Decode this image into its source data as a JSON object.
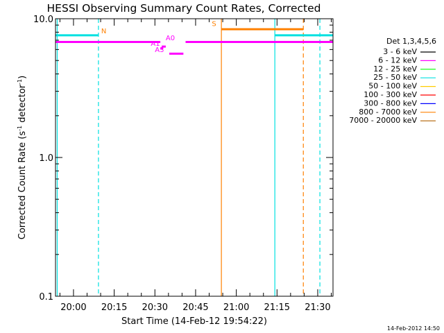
{
  "chart_data": {
    "type": "line",
    "title": "HESSI Observing Summary Count Rates, Corrected",
    "xlabel": "Start Time (14-Feb-12 19:54:22)",
    "ylabel_main": "Corrected Count Rate (s",
    "ylabel_sup1": "-1",
    "ylabel_mid": " detector",
    "ylabel_sup2": "-1",
    "ylabel_end": ")",
    "y_scale": "log",
    "ylim": [
      0.1,
      10.0
    ],
    "y_ticks": [
      {
        "value": 0.1,
        "label": "0.1"
      },
      {
        "value": 1.0,
        "label": "1.0"
      },
      {
        "value": 10.0,
        "label": "10.0"
      }
    ],
    "xlim_minutes": [
      -6.6333,
      95.6333
    ],
    "x_ticks": [
      {
        "label": "20:00",
        "minutes": 0
      },
      {
        "label": "20:15",
        "minutes": 15
      },
      {
        "label": "20:30",
        "minutes": 30
      },
      {
        "label": "20:45",
        "minutes": 45
      },
      {
        "label": "21:00",
        "minutes": 60
      },
      {
        "label": "21:15",
        "minutes": 75
      },
      {
        "label": "21:30",
        "minutes": 90
      }
    ],
    "x_minor_step_minutes": 5,
    "legend": {
      "title": "Det 1,3,4,5,6",
      "entries": [
        {
          "label": "3 - 6 keV",
          "color": "#000000"
        },
        {
          "label": "6 - 12 keV",
          "color": "#ff00ff"
        },
        {
          "label": "12 - 25 keV",
          "color": "#00ff00"
        },
        {
          "label": "25 - 50 keV",
          "color": "#00e0e0"
        },
        {
          "label": "50 - 100 keV",
          "color": "#ffcc00"
        },
        {
          "label": "100 - 300 keV",
          "color": "#ff0000"
        },
        {
          "label": "300 - 800 keV",
          "color": "#0000ff"
        },
        {
          "label": "800 - 7000 keV",
          "color": "#ff8000"
        },
        {
          "label": "7000 - 20000 keV",
          "color": "#b06000"
        }
      ]
    },
    "flag_segments": [
      {
        "label": "N",
        "color": "#00e0e0",
        "start": -6.6,
        "end": 9.2,
        "y": 7.6
      },
      {
        "label": "S",
        "color": "#ff8000",
        "start": 54.5,
        "end": 84.7,
        "y": 8.4
      },
      {
        "label": "",
        "color": "#00e0e0",
        "start": 74.2,
        "end": 95.6,
        "y": 7.6
      },
      {
        "label": "",
        "color": "#ff00ff",
        "start": -6.6,
        "end": 32.0,
        "y": 6.8
      },
      {
        "label": "",
        "color": "#ff00ff",
        "start": 41.3,
        "end": 95.6,
        "y": 6.8
      },
      {
        "label": "A0",
        "color": "#ff00ff",
        "start": 32.0,
        "end": 33.0,
        "y": 6.1
      },
      {
        "label": "A1",
        "color": "#ff00ff",
        "start": 32.5,
        "end": 34.0,
        "y": 6.3
      },
      {
        "label": "A3",
        "color": "#ff00ff",
        "start": 35.3,
        "end": 40.5,
        "y": 5.6
      }
    ],
    "flag_labels": [
      {
        "text": "N",
        "color": "#ff8000",
        "x": 10.2,
        "y": 7.6
      },
      {
        "text": "S",
        "color": "#ff8000",
        "x": 51.0,
        "y": 8.55
      },
      {
        "text": "A0",
        "color": "#ff00ff",
        "x": 34.0,
        "y": 6.75
      },
      {
        "text": "A1",
        "color": "#ff00ff",
        "x": 28.5,
        "y": 6.15
      },
      {
        "text": "A3",
        "color": "#ff00ff",
        "x": 30.0,
        "y": 5.55
      }
    ],
    "vertical_lines": [
      {
        "minutes": -6.0,
        "color": "#00e0e0",
        "style": "solid"
      },
      {
        "minutes": 9.2,
        "color": "#00e0e0",
        "style": "dashed"
      },
      {
        "minutes": 54.5,
        "color": "#ff8000",
        "style": "solid"
      },
      {
        "minutes": 74.2,
        "color": "#00e0e0",
        "style": "solid"
      },
      {
        "minutes": 84.7,
        "color": "#ff8000",
        "style": "dashed"
      },
      {
        "minutes": 90.8,
        "color": "#00e0e0",
        "style": "dashed"
      }
    ],
    "grid": false,
    "legend_position": "right"
  },
  "footer": {
    "timestamp": "14-Feb-2012 14:50"
  }
}
